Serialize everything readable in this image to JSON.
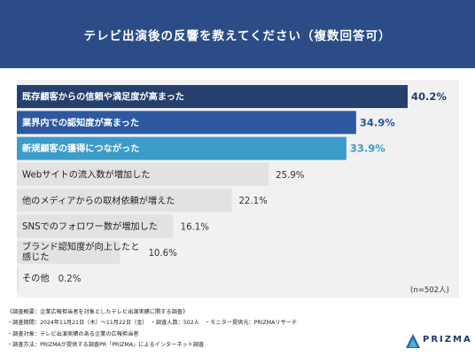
{
  "header": {
    "title": "テレビ出演後の反響を教えてください（複数回答可）"
  },
  "chart_data": {
    "type": "bar",
    "orientation": "horizontal",
    "title": "テレビ出演後の反響を教えてください（複数回答可）",
    "categories": [
      "既存顧客からの信頼や満足度が高まった",
      "業界内での認知度が高まった",
      "新規顧客の獲得につながった",
      "Webサイトの流入数が増加した",
      "他のメディアからの取材依頼が増えた",
      "SNSでのフォロワー数が増加した",
      "ブランド認知度が向上したと感じた",
      "その他"
    ],
    "values": [
      40.2,
      34.9,
      33.9,
      25.9,
      22.1,
      16.1,
      10.6,
      0.2
    ],
    "value_labels": [
      "40.2%",
      "34.9%",
      "33.9%",
      "25.9%",
      "22.1%",
      "16.1%",
      "10.6%",
      "0.2%"
    ],
    "bar_colors": [
      "#26406e",
      "#2d59a0",
      "#3b9cc9",
      "#e2e2e2",
      "#e2e2e2",
      "#e2e2e2",
      "#e2e2e2",
      "#e2e2e2"
    ],
    "label_colors": [
      "#ffffff",
      "#ffffff",
      "#ffffff",
      "#222222",
      "#222222",
      "#222222",
      "#222222",
      "#222222"
    ],
    "value_colors": [
      "#26406e",
      "#2d59a0",
      "#3b9cc9",
      "#333333",
      "#333333",
      "#333333",
      "#333333",
      "#333333"
    ],
    "xlim": [
      0,
      40.2
    ],
    "grid": false,
    "legend": "none"
  },
  "sample_note": "(n=502人)",
  "footer": {
    "lines": [
      "《調査概要：企業広報担当者を対象としたテレビ出演実績に関する調査》",
      "・調査期間：2024年11月21日（木）〜11月22日（金）　・調査人数：502人　・モニター提供元：PRIZMAリサーチ",
      "・調査対象：テレビ出演実績のある企業の広報担当者",
      "・調査方法：PRIZMAが提供する調査PR「PRIZMA」によるインターネット調査"
    ]
  },
  "logo": {
    "text": "PRIZMA",
    "colors": [
      "#2f5fa8",
      "#4bb3cf"
    ]
  }
}
